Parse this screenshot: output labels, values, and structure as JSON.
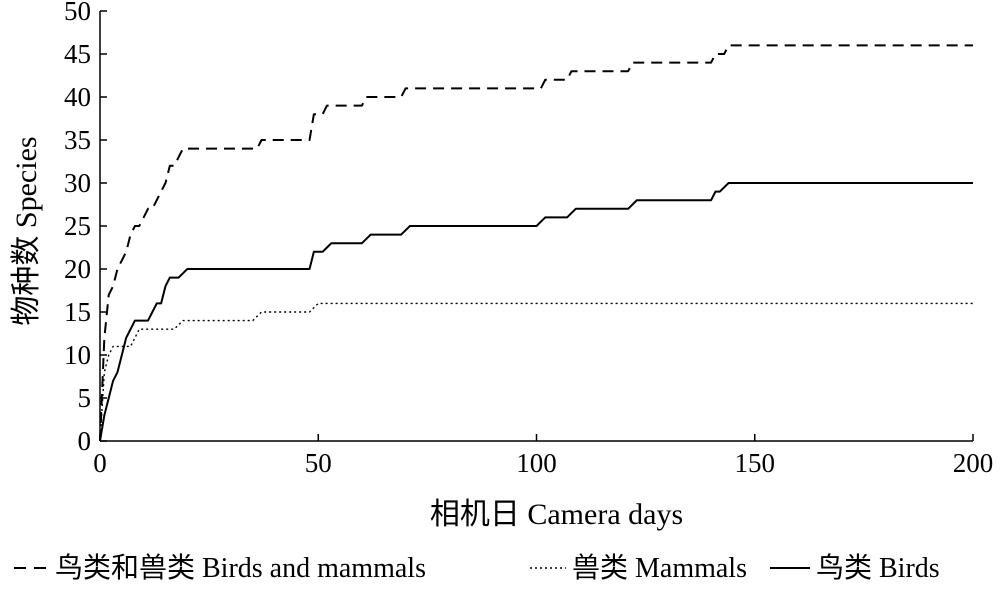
{
  "chart_data": {
    "type": "line",
    "xlabel": "相机日 Camera days",
    "ylabel": "物种数 Species",
    "xlim": [
      0,
      200
    ],
    "ylim": [
      0,
      50
    ],
    "xticks": [
      0,
      50,
      100,
      150,
      200
    ],
    "yticks": [
      0,
      5,
      10,
      15,
      20,
      25,
      30,
      35,
      40,
      45,
      50
    ],
    "grid": false,
    "legend_position": "bottom",
    "series": [
      {
        "name": "鸟类和兽类 Birds and mammals",
        "style": "dashed",
        "color": "#000000",
        "x": [
          0,
          1,
          2,
          3,
          4,
          5,
          6,
          7,
          8,
          9,
          10,
          11,
          12,
          13,
          14,
          15,
          16,
          17,
          18,
          19,
          20,
          36,
          37,
          48,
          49,
          51,
          52,
          60,
          61,
          69,
          70,
          101,
          102,
          107,
          108,
          121,
          122,
          140,
          141,
          143,
          144,
          200
        ],
        "y": [
          0,
          12,
          17,
          18,
          20,
          21,
          22,
          24,
          25,
          25,
          26,
          27,
          27,
          28,
          29,
          30,
          32,
          32,
          33,
          34,
          34,
          34,
          35,
          35,
          38,
          38,
          39,
          39,
          40,
          40,
          41,
          41,
          42,
          42,
          43,
          43,
          44,
          44,
          45,
          45,
          46,
          46
        ]
      },
      {
        "name": "兽类 Mammals",
        "style": "dotted",
        "color": "#000000",
        "x": [
          0,
          1,
          2,
          3,
          4,
          7,
          8,
          9,
          15,
          16,
          17,
          18,
          19,
          20,
          35,
          36,
          37,
          47,
          48,
          49,
          50,
          200
        ],
        "y": [
          0,
          8,
          10,
          11,
          11,
          11,
          12,
          13,
          13,
          13,
          13,
          13.5,
          14,
          14,
          14,
          14.5,
          15,
          15,
          15,
          15.5,
          16,
          16
        ]
      },
      {
        "name": "鸟类 Birds",
        "style": "solid",
        "color": "#000000",
        "x": [
          0,
          1,
          2,
          3,
          4,
          5,
          6,
          7,
          8,
          9,
          10,
          11,
          12,
          13,
          14,
          15,
          16,
          17,
          18,
          19,
          20,
          48,
          49,
          50,
          51,
          52,
          53,
          60,
          61,
          62,
          63,
          69,
          70,
          71,
          100,
          101,
          102,
          107,
          108,
          109,
          121,
          122,
          123,
          140,
          141,
          142,
          143,
          144,
          200
        ],
        "y": [
          0,
          3,
          5,
          7,
          8,
          10,
          12,
          13,
          14,
          14,
          14,
          14,
          15,
          16,
          16,
          18,
          19,
          19,
          19,
          19.5,
          20,
          20,
          22,
          22,
          22,
          22.5,
          23,
          23,
          23.5,
          24,
          24,
          24,
          24.5,
          25,
          25,
          25.5,
          26,
          26,
          26.5,
          27,
          27,
          27.5,
          28,
          28,
          29,
          29,
          29.5,
          30,
          30
        ]
      }
    ],
    "legend": [
      {
        "label": "鸟类和兽类 Birds and mammals",
        "style": "dashed"
      },
      {
        "label": "兽类 Mammals",
        "style": "dotted"
      },
      {
        "label": "鸟类 Birds",
        "style": "solid"
      }
    ]
  }
}
